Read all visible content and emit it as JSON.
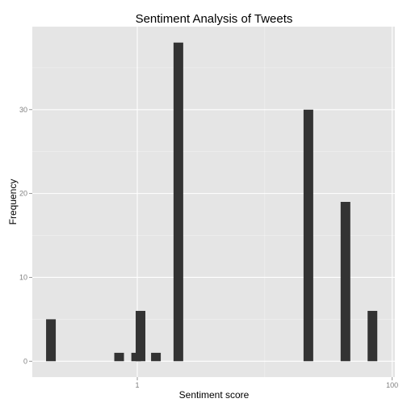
{
  "chart_data": {
    "type": "bar",
    "title": "Sentiment Analysis of Tweets",
    "xlabel": "Sentiment score",
    "ylabel": "Frequency",
    "x_scale": "log10",
    "xlim": [
      0.15,
      105
    ],
    "ylim": [
      -1.9,
      39.9
    ],
    "x_ticks": [
      {
        "value": 1,
        "label": "1"
      },
      {
        "value": 100,
        "label": "100"
      }
    ],
    "y_ticks": [
      {
        "value": 0,
        "label": "0"
      },
      {
        "value": 10,
        "label": "10"
      },
      {
        "value": 20,
        "label": "20"
      },
      {
        "value": 30,
        "label": "30"
      }
    ],
    "grid": true,
    "bars": [
      {
        "x": 0.21,
        "count": 5
      },
      {
        "x": 0.72,
        "count": 1
      },
      {
        "x": 0.98,
        "count": 1
      },
      {
        "x": 1.06,
        "count": 6
      },
      {
        "x": 1.4,
        "count": 1
      },
      {
        "x": 2.1,
        "count": 38
      },
      {
        "x": 22,
        "count": 30
      },
      {
        "x": 43,
        "count": 19
      },
      {
        "x": 70,
        "count": 6
      }
    ],
    "colors": {
      "panel": "#e5e5e5",
      "grid_major": "#ffffff",
      "grid_minor": "#f2f2f2",
      "bar": "#333333"
    }
  }
}
